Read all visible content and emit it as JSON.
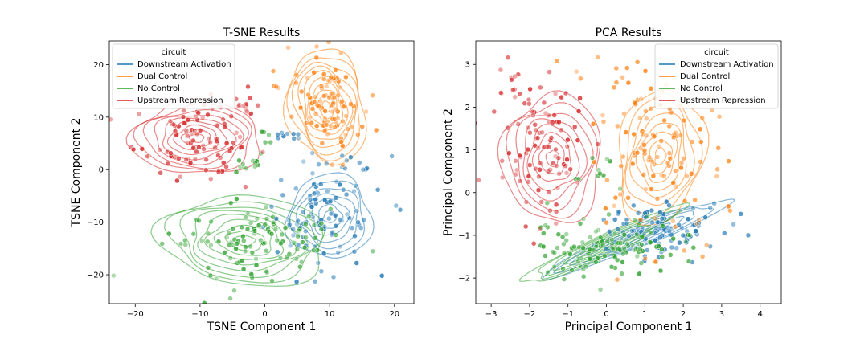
{
  "chart_data": [
    {
      "type": "scatter",
      "title": "T-SNE Results",
      "xlabel": "TSNE Component 1",
      "ylabel": "TSNE Component 2",
      "xlim": [
        -24,
        23
      ],
      "ylim": [
        -25.5,
        24.5
      ],
      "xticks": [
        -20,
        -10,
        0,
        10,
        20
      ],
      "yticks": [
        -20,
        -10,
        0,
        10,
        20
      ],
      "legend": {
        "title": "circuit",
        "placement": "top-left",
        "entries": [
          "Downstream Activation",
          "Dual Control",
          "No Control",
          "Upstream Repression"
        ]
      },
      "series": [
        {
          "name": "Downstream Activation",
          "color": "#1f77b4",
          "clusters": [
            {
              "cx": 9,
              "cy": -8,
              "sx": 4.5,
              "sy": 5.5,
              "n": 100
            },
            {
              "cx": 4,
              "cy": 6.5,
              "sx": 1.2,
              "sy": 0.6,
              "n": 8
            }
          ],
          "contours": [
            {
              "cx": 10,
              "cy": -9,
              "rx": 6.5,
              "ry": 8,
              "rot": -20,
              "levels": 7
            }
          ]
        },
        {
          "name": "Dual Control",
          "color": "#ff7f0e",
          "clusters": [
            {
              "cx": 10,
              "cy": 13,
              "sx": 2.5,
              "sy": 5,
              "n": 95
            },
            {
              "cx": 1.5,
              "cy": 15.5,
              "sx": 0.5,
              "sy": 0.3,
              "n": 3
            }
          ],
          "contours": [
            {
              "cx": 9.5,
              "cy": 12,
              "rx": 6,
              "ry": 11,
              "rot": 10,
              "levels": 10
            }
          ]
        },
        {
          "name": "No Control",
          "color": "#2ca02c",
          "clusters": [
            {
              "cx": -3,
              "cy": -14,
              "sx": 6,
              "sy": 4,
              "n": 110
            },
            {
              "cx": -3,
              "cy": 1,
              "sx": 1.5,
              "sy": 1,
              "n": 12
            },
            {
              "cx": 0,
              "cy": 5.5,
              "sx": 1,
              "sy": 0.8,
              "n": 6
            }
          ],
          "contours": [
            {
              "cx": -3,
              "cy": -13.5,
              "rx": 13,
              "ry": 8.5,
              "rot": -5,
              "levels": 9
            }
          ]
        },
        {
          "name": "Upstream Repression",
          "color": "#d62728",
          "clusters": [
            {
              "cx": -11,
              "cy": 6,
              "sx": 4.5,
              "sy": 3.5,
              "n": 90
            },
            {
              "cx": -3,
              "cy": 12,
              "sx": 1.5,
              "sy": 1.2,
              "n": 12
            }
          ],
          "contours": [
            {
              "cx": -10.5,
              "cy": 6,
              "rx": 10,
              "ry": 7,
              "rot": 0,
              "levels": 9
            }
          ]
        }
      ]
    },
    {
      "type": "scatter",
      "title": "PCA Results",
      "xlabel": "Principal Component 1",
      "ylabel": "Principal Component 2",
      "xlim": [
        -3.4,
        4.55
      ],
      "ylim": [
        -2.6,
        3.55
      ],
      "xticks": [
        -3,
        -2,
        -1,
        0,
        1,
        2,
        3,
        4
      ],
      "yticks": [
        -2,
        -1,
        0,
        1,
        2,
        3
      ],
      "legend": {
        "title": "circuit",
        "placement": "top-right",
        "entries": [
          "Downstream Activation",
          "Dual Control",
          "No Control",
          "Upstream Repression"
        ]
      },
      "series": [
        {
          "name": "Downstream Activation",
          "color": "#1f77b4",
          "clusters": [
            {
              "cx": 1.2,
              "cy": -0.9,
              "sx": 0.9,
              "sy": 0.35,
              "n": 110
            }
          ],
          "contours": [
            {
              "cx": 0.8,
              "cy": -1.05,
              "rx": 2.6,
              "ry": 0.25,
              "rot": 22,
              "levels": 6
            }
          ]
        },
        {
          "name": "Dual Control",
          "color": "#ff7f0e",
          "clusters": [
            {
              "cx": 1.3,
              "cy": 1.0,
              "sx": 0.9,
              "sy": 0.9,
              "n": 110
            },
            {
              "cx": 0.5,
              "cy": 2.6,
              "sx": 0.8,
              "sy": 0.4,
              "n": 12
            }
          ],
          "contours": [
            {
              "cx": 1.4,
              "cy": 0.85,
              "rx": 1.1,
              "ry": 1.6,
              "rot": -10,
              "levels": 8
            }
          ]
        },
        {
          "name": "No Control",
          "color": "#2ca02c",
          "clusters": [
            {
              "cx": 0,
              "cy": -1.3,
              "sx": 1.0,
              "sy": 0.3,
              "n": 120
            },
            {
              "cx": -0.3,
              "cy": 0.6,
              "sx": 0.4,
              "sy": 0.3,
              "n": 10
            }
          ],
          "contours": [
            {
              "cx": -0.1,
              "cy": -1.25,
              "rx": 2.3,
              "ry": 0.25,
              "rot": 25,
              "levels": 7
            }
          ]
        },
        {
          "name": "Upstream Repression",
          "color": "#d62728",
          "clusters": [
            {
              "cx": -1.6,
              "cy": 0.9,
              "sx": 0.55,
              "sy": 0.8,
              "n": 90
            },
            {
              "cx": -2.2,
              "cy": 2.4,
              "sx": 0.6,
              "sy": 0.4,
              "n": 15
            }
          ],
          "contours": [
            {
              "cx": -1.4,
              "cy": 0.8,
              "rx": 1.3,
              "ry": 1.5,
              "rot": 0,
              "levels": 8
            }
          ]
        }
      ]
    }
  ]
}
